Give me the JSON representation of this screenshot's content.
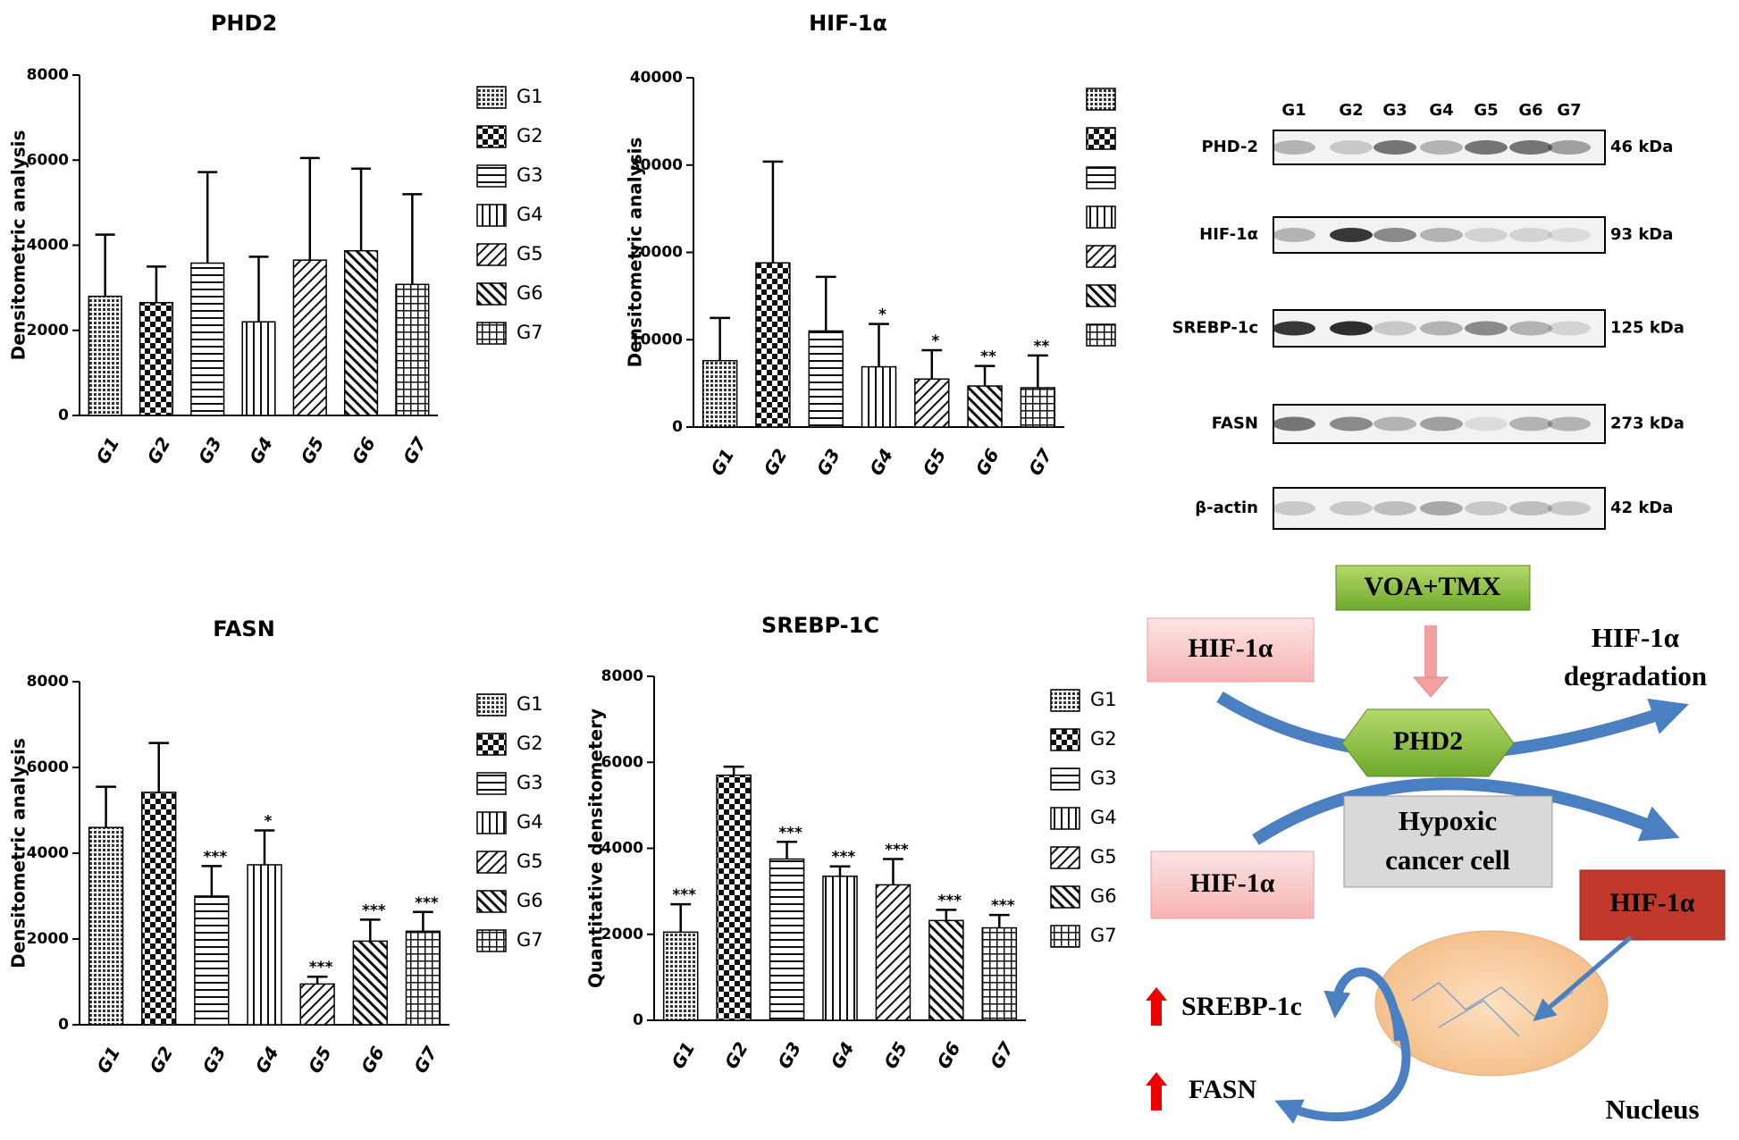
{
  "chart_data": [
    {
      "type": "bar",
      "title": "PHD2",
      "y_label": "Densitometric analysis",
      "categories": [
        "G1",
        "G2",
        "G3",
        "G4",
        "G5",
        "G6",
        "G7"
      ],
      "values": [
        2800,
        2650,
        3580,
        2200,
        3650,
        3870,
        3080
      ],
      "errors": [
        1450,
        850,
        2140,
        1530,
        2400,
        1930,
        2120
      ],
      "annotations": [
        null,
        null,
        null,
        null,
        null,
        null,
        null
      ],
      "ylim": [
        0,
        8000
      ],
      "yticks": [
        0,
        2000,
        4000,
        6000,
        8000
      ],
      "legend_labels": true
    },
    {
      "type": "bar",
      "title": "HIF-1α",
      "y_label": "Densitometric analysis",
      "categories": [
        "G1",
        "G2",
        "G3",
        "G4",
        "G5",
        "G6",
        "G7"
      ],
      "values": [
        7600,
        18800,
        11000,
        6900,
        5500,
        4700,
        4500
      ],
      "errors": [
        4900,
        11600,
        6200,
        4900,
        3300,
        2300,
        3700
      ],
      "annotations": [
        null,
        null,
        null,
        "*",
        "*",
        "**",
        "**"
      ],
      "ylim": [
        0,
        40000
      ],
      "yticks": [
        0,
        10000,
        20000,
        30000,
        40000
      ],
      "legend_labels": false
    },
    {
      "type": "bar",
      "title": "FASN",
      "y_label": "Densitometric analysis",
      "categories": [
        "G1",
        "G2",
        "G3",
        "G4",
        "G5",
        "G6",
        "G7"
      ],
      "values": [
        4600,
        5420,
        3000,
        3730,
        950,
        1950,
        2180
      ],
      "errors": [
        950,
        1150,
        700,
        800,
        170,
        500,
        450
      ],
      "annotations": [
        null,
        null,
        "***",
        "*",
        "***",
        "***",
        "***"
      ],
      "ylim": [
        0,
        8000
      ],
      "yticks": [
        0,
        2000,
        4000,
        6000,
        8000
      ],
      "legend_labels": true
    },
    {
      "type": "bar",
      "title": "SREBP-1C",
      "y_label": "Quantitative densitometery",
      "categories": [
        "G1",
        "G2",
        "G3",
        "G4",
        "G5",
        "G6",
        "G7"
      ],
      "values": [
        2050,
        5700,
        3750,
        3350,
        3150,
        2320,
        2150
      ],
      "errors": [
        650,
        200,
        400,
        230,
        600,
        250,
        300
      ],
      "annotations": [
        "***",
        null,
        "***",
        "***",
        "***",
        "***",
        "***"
      ],
      "ylim": [
        0,
        8000
      ],
      "yticks": [
        0,
        2000,
        4000,
        6000,
        8000
      ],
      "legend_labels": true
    }
  ],
  "blot": {
    "lanes": [
      "G1",
      "G2",
      "G3",
      "G4",
      "G5",
      "G6",
      "G7"
    ],
    "rows": [
      {
        "label": "PHD-2",
        "kda": "46 kDa"
      },
      {
        "label": "HIF-1α",
        "kda": "93 kDa"
      },
      {
        "label": "SREBP-1c",
        "kda": "125 kDa"
      },
      {
        "label": "FASN",
        "kda": "273 kDa"
      },
      {
        "label": "β-actin",
        "kda": "42 kDa"
      }
    ]
  },
  "diagram": {
    "treatment": "VOA+TMX",
    "hif_top": "HIF-1α",
    "degradation_1": "HIF-1α",
    "degradation_2": "degradation",
    "phd2": "PHD2",
    "cell_1": "Hypoxic",
    "cell_2": "cancer cell",
    "hif_lower": "HIF-1α",
    "hif_red": "HIF-1α",
    "srebp": "SREBP-1c",
    "fasn": "FASN",
    "nucleus": "Nucleus"
  }
}
